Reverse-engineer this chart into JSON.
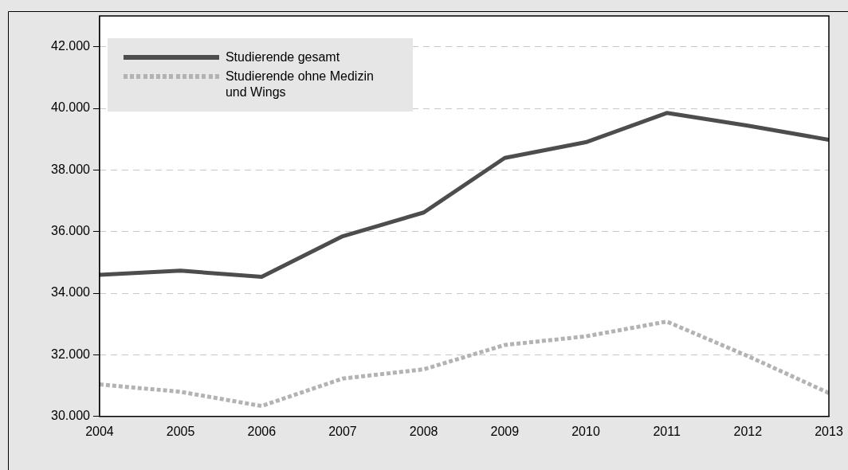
{
  "chart_data": {
    "type": "line",
    "x": [
      2004,
      2005,
      2006,
      2007,
      2008,
      2009,
      2010,
      2011,
      2012,
      2013
    ],
    "xlim": [
      2004,
      2013
    ],
    "xticks": [
      2004,
      2005,
      2006,
      2007,
      2008,
      2009,
      2010,
      2011,
      2012,
      2013
    ],
    "ylim": [
      30000,
      43000
    ],
    "yticks": [
      {
        "value": 30000,
        "label": "30.000"
      },
      {
        "value": 32000,
        "label": "32.000"
      },
      {
        "value": 34000,
        "label": "34.000"
      },
      {
        "value": 36000,
        "label": "36.000"
      },
      {
        "value": 38000,
        "label": "38.000"
      },
      {
        "value": 40000,
        "label": "40.000"
      },
      {
        "value": 42000,
        "label": "42.000"
      }
    ],
    "grid": "y",
    "legend": "top left",
    "marker": "none",
    "series": [
      {
        "name": "Studierende gesamt",
        "color": "#4d4d4d",
        "line_style": "solid",
        "values": [
          34600,
          34730,
          34530,
          35850,
          36620,
          38390,
          38900,
          39850,
          39440,
          38980
        ]
      },
      {
        "name": "Studierende ohne Medizin und Wings",
        "color": "#b3b3b3",
        "line_style": "dotted",
        "values": [
          31040,
          30800,
          30340,
          31230,
          31530,
          32320,
          32600,
          33080,
          31960,
          30760
        ]
      }
    ]
  }
}
